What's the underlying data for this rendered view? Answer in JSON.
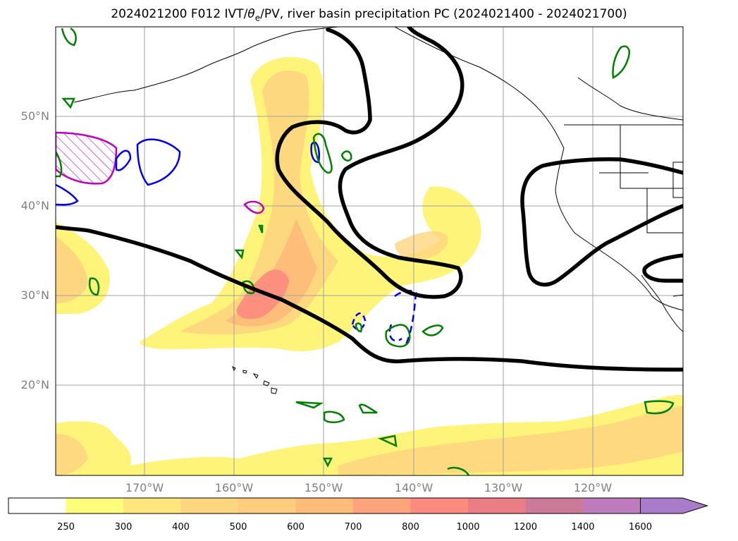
{
  "title": {
    "prefix": "2024021200 F012 IVT/",
    "theta": "θ",
    "sub": "e",
    "suffix": "/PV, river basin precipitation PC (2024021400 - 2024021700)"
  },
  "map": {
    "lat_labels": [
      "50°N",
      "40°N",
      "30°N",
      "20°N"
    ],
    "lon_labels": [
      "170°W",
      "160°W",
      "150°W",
      "140°W",
      "130°W",
      "120°W"
    ]
  },
  "colorbar": {
    "labels": [
      "250",
      "300",
      "400",
      "500",
      "600",
      "700",
      "800",
      "1000",
      "1200",
      "1400",
      "1600"
    ],
    "colors": [
      "#ffffff",
      "#fefe7a",
      "#fee67c",
      "#fed680",
      "#fecd7e",
      "#febb79",
      "#fea37b",
      "#fd8a7f",
      "#ea7e85",
      "#cd7a99",
      "#bf7cbc",
      "#a87bcb"
    ]
  },
  "colors": {
    "ivt_light": "#fef47a",
    "ivt_mid": "#fed680",
    "ivt_high": "#fea37b",
    "ivt_peak": "#fd8a7f",
    "pv_black": "#000000",
    "theta_green": "#008000",
    "theta_blue": "#0000ee",
    "theta_magenta": "#c000c0"
  }
}
